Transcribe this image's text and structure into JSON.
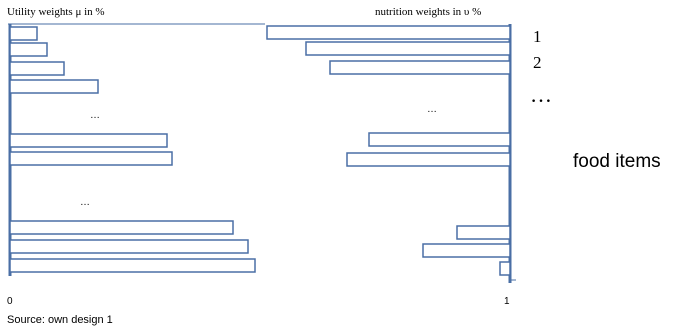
{
  "titles": {
    "left": "Utility weights μ in %",
    "right": "nutrition weights in υ %"
  },
  "row_labels": {
    "first": "1",
    "second": "2",
    "ellipsis": "…",
    "axis_title": "food items"
  },
  "axis": {
    "min": "0",
    "max": "1"
  },
  "ellipsis_mark": "…",
  "source": "Source: own design 1",
  "colors": {
    "bar_stroke": "#4a6fa5",
    "axis": "#4a6fa5"
  },
  "left_bars": [
    {
      "row": "1",
      "value": 0.11
    },
    {
      "row": "2",
      "value": 0.15
    },
    {
      "row": "3",
      "value": 0.22
    },
    {
      "row": "4",
      "value": 0.36
    },
    {
      "row": "gap",
      "value": null
    },
    {
      "row": "5",
      "value": 0.64
    },
    {
      "row": "6",
      "value": 0.66
    },
    {
      "row": "gap",
      "value": null
    },
    {
      "row": "7",
      "value": 0.91
    },
    {
      "row": "8",
      "value": 0.97
    },
    {
      "row": "9",
      "value": 1.0
    }
  ],
  "right_bars": [
    {
      "row": "1",
      "value": 1.0
    },
    {
      "row": "2",
      "value": 0.84
    },
    {
      "row": "3",
      "value": 0.74
    },
    {
      "row": "gap",
      "value": null
    },
    {
      "row": "4",
      "value": 0.58
    },
    {
      "row": "5",
      "value": 0.67
    },
    {
      "row": "gap",
      "value": null
    },
    {
      "row": "6",
      "value": 0.22
    },
    {
      "row": "7",
      "value": 0.36
    },
    {
      "row": "8",
      "value": 0.04
    }
  ]
}
